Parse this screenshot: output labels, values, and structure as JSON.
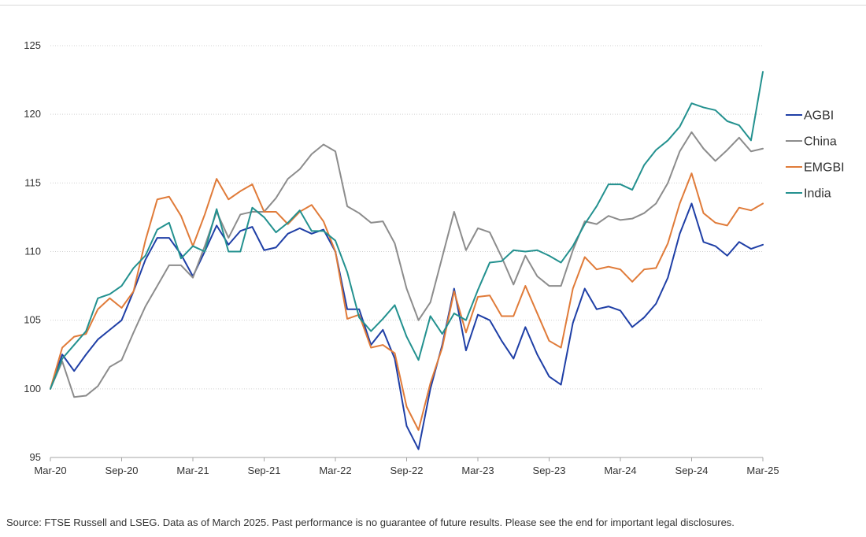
{
  "chart_data": {
    "type": "line",
    "title": "",
    "xlabel": "",
    "ylabel": "",
    "x_tick_labels": [
      "Mar-20",
      "Sep-20",
      "Mar-21",
      "Sep-21",
      "Mar-22",
      "Sep-22",
      "Mar-23",
      "Sep-23",
      "Mar-24",
      "Sep-24",
      "Mar-25"
    ],
    "y_ticks": [
      95,
      100,
      105,
      110,
      115,
      120,
      125
    ],
    "ylim": [
      95,
      125
    ],
    "x_range_months": [
      "Mar-20",
      "Mar-25"
    ],
    "grid": {
      "horizontal": true,
      "style": "dotted"
    },
    "legend_position": "right",
    "series": [
      {
        "name": "AGBI",
        "color": "#1f3fa6",
        "values": [
          100.0,
          102.5,
          101.3,
          102.5,
          103.6,
          104.3,
          105.0,
          107.1,
          109.4,
          111.0,
          111.0,
          109.8,
          108.2,
          110.0,
          111.9,
          110.5,
          111.5,
          111.8,
          110.1,
          110.3,
          111.3,
          111.7,
          111.3,
          111.6,
          110.0,
          105.8,
          105.8,
          103.2,
          104.3,
          102.2,
          97.3,
          95.6,
          100.0,
          103.2,
          107.3,
          102.8,
          105.4,
          105.0,
          103.5,
          102.2,
          104.5,
          102.5,
          100.9,
          100.3,
          104.8,
          107.3,
          105.8,
          106.0,
          105.7,
          104.5,
          105.2,
          106.2,
          108.1,
          111.3,
          113.5,
          110.7,
          110.4,
          109.7,
          110.7,
          110.2,
          110.5
        ]
      },
      {
        "name": "China",
        "color": "#8c8c8c",
        "values": [
          100.0,
          102.0,
          99.4,
          99.5,
          100.2,
          101.6,
          102.1,
          104.1,
          106.0,
          107.5,
          109.0,
          109.0,
          108.1,
          110.4,
          112.9,
          111.0,
          112.7,
          112.9,
          112.9,
          113.9,
          115.3,
          116.0,
          117.1,
          117.8,
          117.3,
          113.3,
          112.8,
          112.1,
          112.2,
          110.6,
          107.3,
          105.0,
          106.3,
          109.6,
          112.9,
          110.1,
          111.7,
          111.4,
          109.6,
          107.6,
          109.7,
          108.2,
          107.5,
          107.5,
          110.1,
          112.2,
          112.0,
          112.6,
          112.3,
          112.4,
          112.8,
          113.5,
          115.0,
          117.3,
          118.7,
          117.5,
          116.6,
          117.4,
          118.3,
          117.3,
          117.5
        ]
      },
      {
        "name": "EMGBI",
        "color": "#e07b39",
        "values": [
          100.0,
          103.0,
          103.8,
          104.0,
          105.8,
          106.6,
          105.9,
          107.1,
          110.8,
          113.8,
          114.0,
          112.6,
          110.4,
          112.7,
          115.3,
          113.8,
          114.4,
          114.9,
          112.9,
          112.9,
          112.0,
          112.9,
          113.4,
          112.2,
          110.0,
          105.1,
          105.4,
          103.0,
          103.2,
          102.6,
          98.7,
          97.0,
          100.4,
          103.0,
          107.1,
          104.1,
          106.7,
          106.8,
          105.3,
          105.3,
          107.5,
          105.5,
          103.5,
          103.0,
          107.3,
          109.6,
          108.7,
          108.9,
          108.7,
          107.8,
          108.7,
          108.8,
          110.6,
          113.5,
          115.7,
          112.8,
          112.1,
          111.9,
          113.2,
          113.0,
          113.5
        ]
      },
      {
        "name": "India",
        "color": "#23918f",
        "values": [
          100.0,
          102.2,
          103.2,
          104.2,
          106.6,
          106.9,
          107.5,
          108.8,
          109.7,
          111.6,
          112.1,
          109.5,
          110.4,
          110.0,
          113.1,
          110.0,
          110.0,
          113.2,
          112.5,
          111.4,
          112.1,
          113.0,
          111.5,
          111.5,
          110.8,
          108.5,
          105.2,
          104.2,
          105.1,
          106.1,
          103.8,
          102.1,
          105.3,
          104.0,
          105.5,
          105.0,
          107.2,
          109.2,
          109.3,
          110.1,
          110.0,
          110.1,
          109.7,
          109.2,
          110.4,
          112.0,
          113.3,
          114.9,
          114.9,
          114.5,
          116.3,
          117.4,
          118.1,
          119.1,
          120.8,
          120.5,
          120.3,
          119.5,
          119.2,
          118.1,
          123.1
        ]
      }
    ]
  },
  "footnote": "Source: FTSE Russell and LSEG. Data as of March 2025. Past performance is no guarantee of future results. Please see the end for important legal disclosures."
}
